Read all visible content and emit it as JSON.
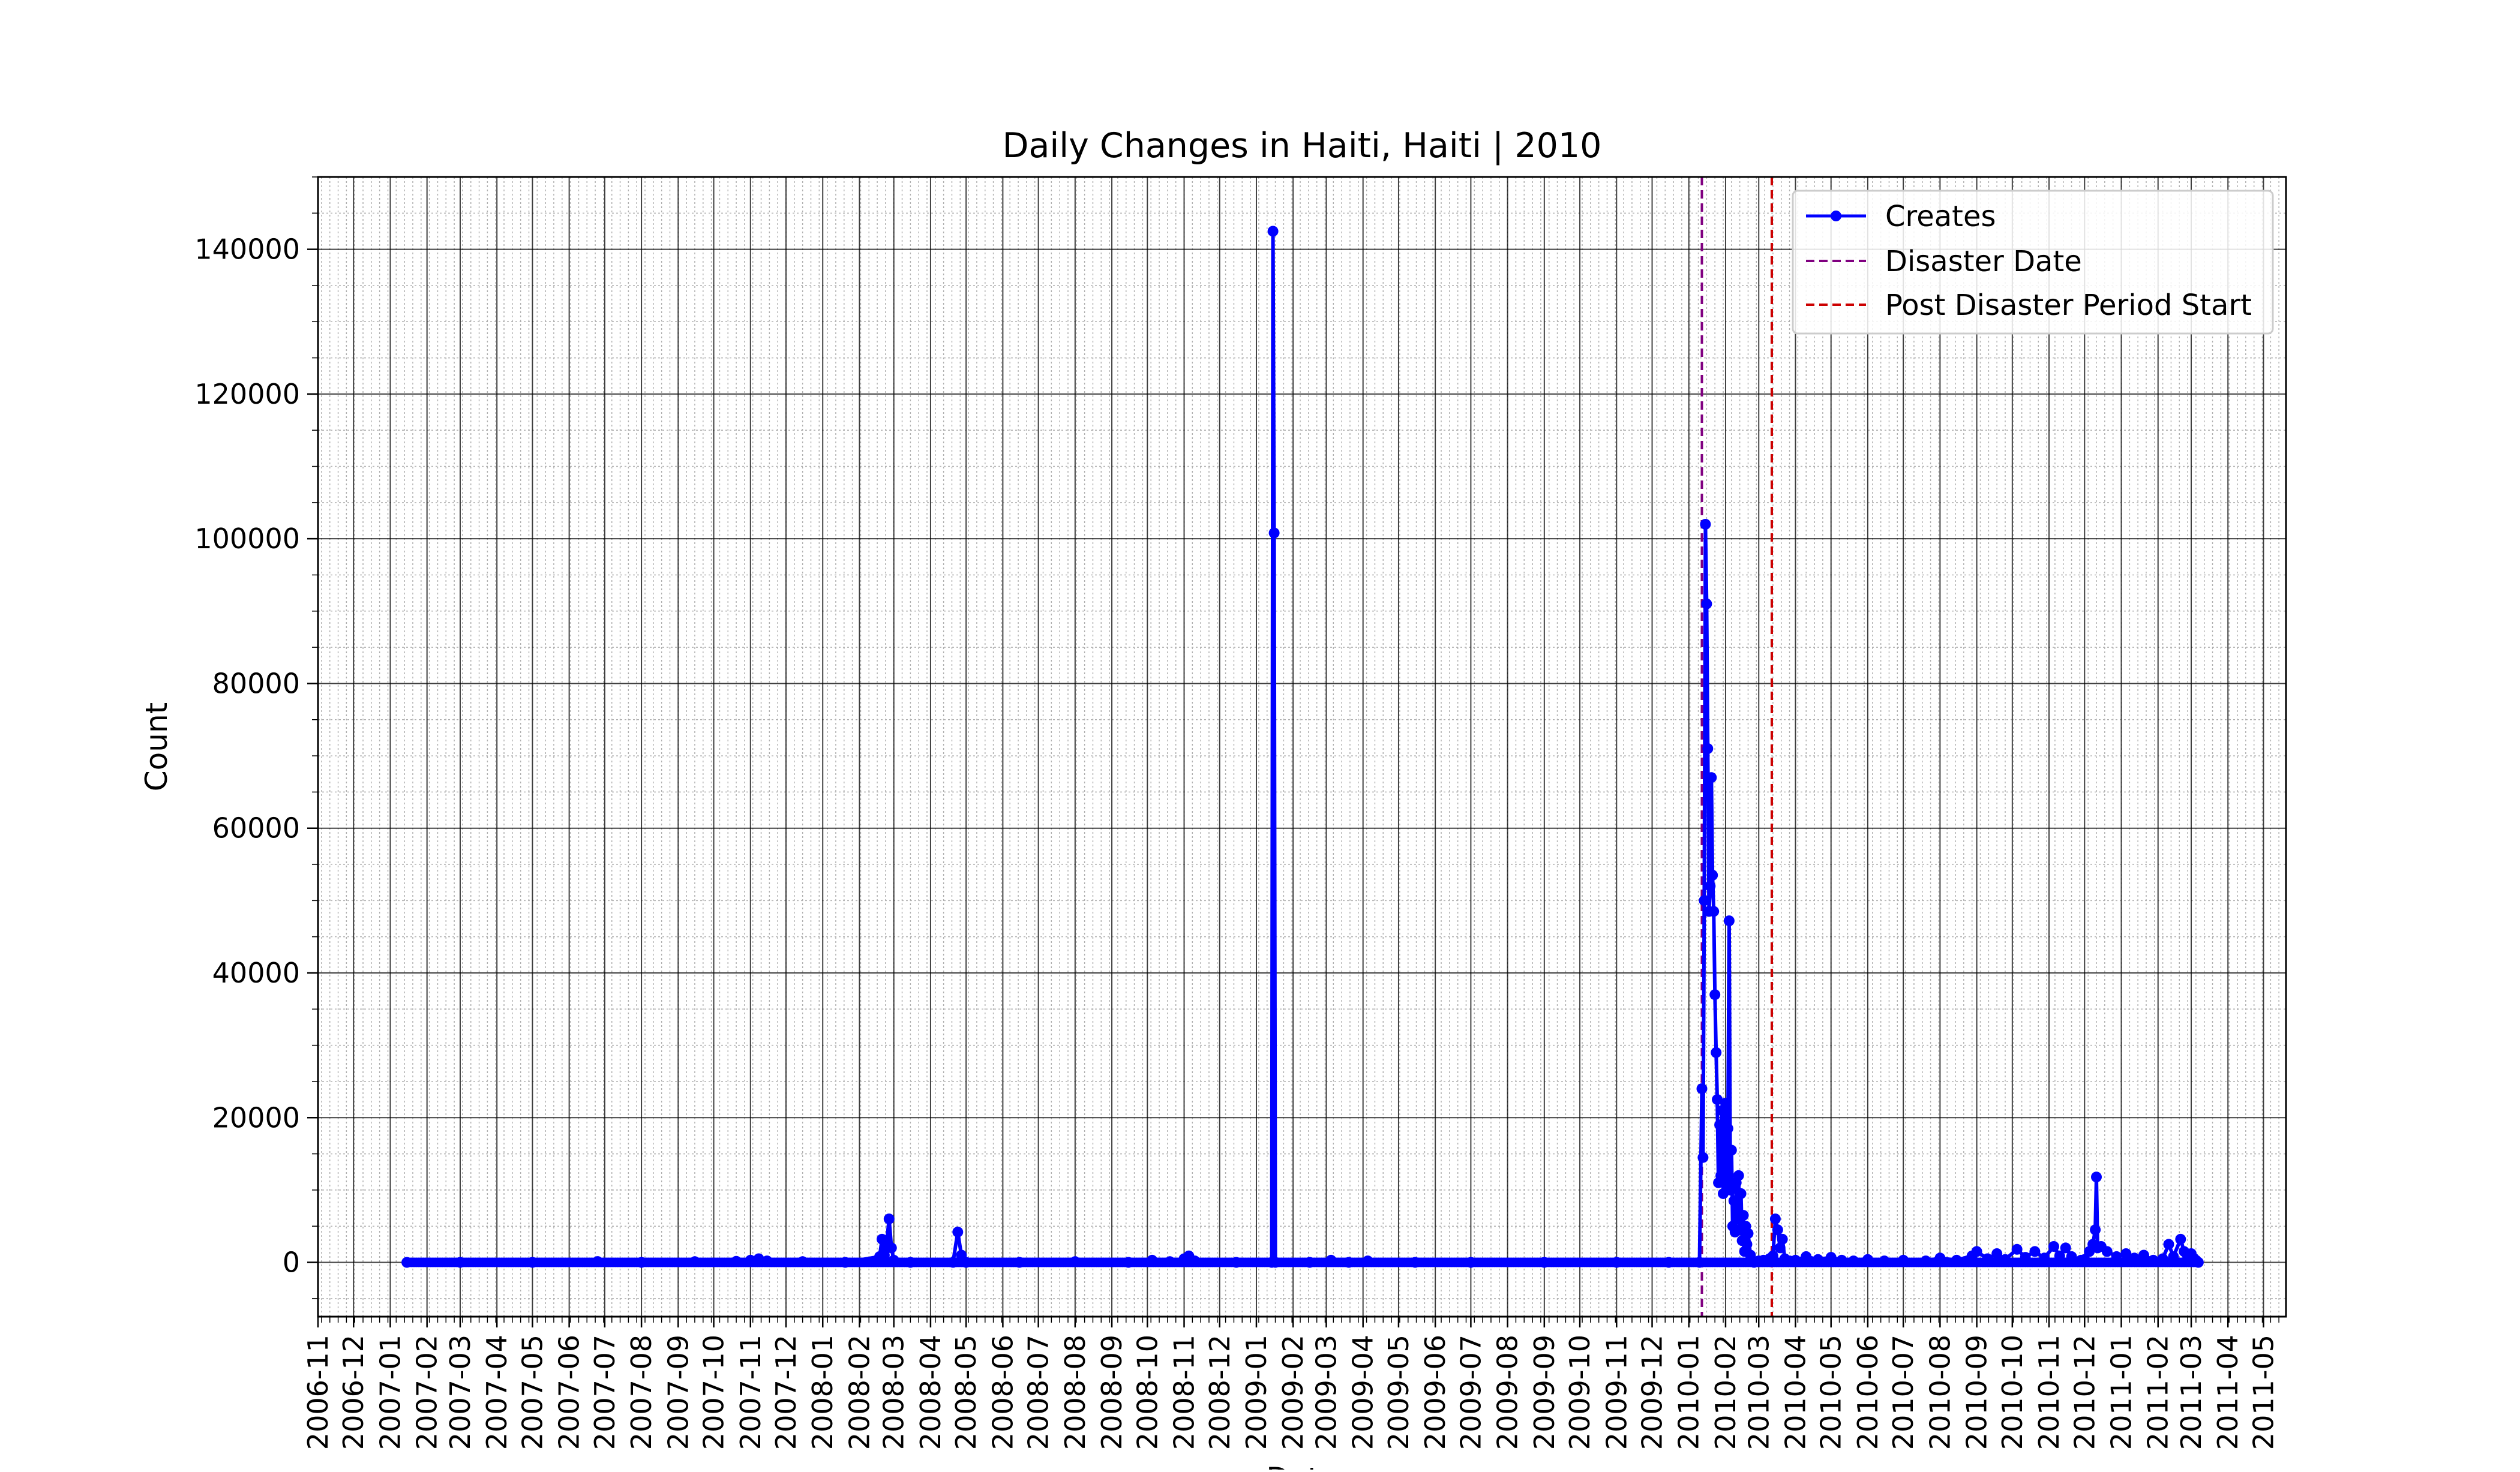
{
  "chart_data": {
    "type": "line",
    "title": "Daily Changes in Haiti, Haiti | 2010",
    "xlabel": "Date",
    "ylabel": "Count",
    "x_axis_type": "date",
    "xlim": [
      "2006-11-01",
      "2011-05-20"
    ],
    "ylim": [
      -7500,
      150000
    ],
    "grid": "major solid, minor dotted",
    "x_ticks": [
      "2006-11",
      "2006-12",
      "2007-01",
      "2007-02",
      "2007-03",
      "2007-04",
      "2007-05",
      "2007-06",
      "2007-07",
      "2007-08",
      "2007-09",
      "2007-10",
      "2007-11",
      "2007-12",
      "2008-01",
      "2008-02",
      "2008-03",
      "2008-04",
      "2008-05",
      "2008-06",
      "2008-07",
      "2008-08",
      "2008-09",
      "2008-10",
      "2008-11",
      "2008-12",
      "2009-01",
      "2009-02",
      "2009-03",
      "2009-04",
      "2009-05",
      "2009-06",
      "2009-07",
      "2009-08",
      "2009-09",
      "2009-10",
      "2009-11",
      "2009-12",
      "2010-01",
      "2010-02",
      "2010-03",
      "2010-04",
      "2010-05",
      "2010-06",
      "2010-07",
      "2010-08",
      "2010-09",
      "2010-10",
      "2010-11",
      "2010-12",
      "2011-01",
      "2011-02",
      "2011-03",
      "2011-04",
      "2011-05"
    ],
    "y_ticks": [
      0,
      20000,
      40000,
      60000,
      80000,
      100000,
      120000,
      140000
    ],
    "y_tick_labels": [
      "0",
      "20000",
      "40000",
      "60000",
      "80000",
      "100000",
      "120000",
      "140000"
    ],
    "legend_position": "top-right",
    "series": [
      {
        "name": "Creates",
        "color": "#0000ff",
        "marker": "circle",
        "points": [
          [
            "2007-01-15",
            0
          ],
          [
            "2007-03-01",
            0
          ],
          [
            "2007-05-01",
            0
          ],
          [
            "2007-06-25",
            120
          ],
          [
            "2007-08-01",
            0
          ],
          [
            "2007-09-15",
            100
          ],
          [
            "2007-10-20",
            150
          ],
          [
            "2007-11-01",
            300
          ],
          [
            "2007-11-08",
            500
          ],
          [
            "2007-11-15",
            200
          ],
          [
            "2007-12-15",
            100
          ],
          [
            "2008-01-20",
            0
          ],
          [
            "2008-02-18",
            800
          ],
          [
            "2008-02-20",
            3200
          ],
          [
            "2008-02-22",
            1000
          ],
          [
            "2008-02-24",
            2800
          ],
          [
            "2008-02-26",
            6000
          ],
          [
            "2008-02-28",
            2000
          ],
          [
            "2008-03-01",
            300
          ],
          [
            "2008-03-15",
            0
          ],
          [
            "2008-04-20",
            0
          ],
          [
            "2008-04-24",
            4200
          ],
          [
            "2008-04-27",
            1000
          ],
          [
            "2008-05-01",
            0
          ],
          [
            "2008-06-15",
            0
          ],
          [
            "2008-08-01",
            100
          ],
          [
            "2008-09-15",
            0
          ],
          [
            "2008-10-05",
            300
          ],
          [
            "2008-10-20",
            100
          ],
          [
            "2008-11-01",
            500
          ],
          [
            "2008-11-05",
            900
          ],
          [
            "2008-11-10",
            200
          ],
          [
            "2008-12-15",
            0
          ],
          [
            "2009-01-14",
            0
          ],
          [
            "2009-01-15",
            142500
          ],
          [
            "2009-01-16",
            100800
          ],
          [
            "2009-01-17",
            0
          ],
          [
            "2009-02-15",
            0
          ],
          [
            "2009-03-05",
            300
          ],
          [
            "2009-03-20",
            0
          ],
          [
            "2009-04-05",
            200
          ],
          [
            "2009-05-15",
            0
          ],
          [
            "2009-07-01",
            0
          ],
          [
            "2009-09-01",
            0
          ],
          [
            "2009-11-01",
            0
          ],
          [
            "2009-12-15",
            0
          ],
          [
            "2010-01-10",
            0
          ],
          [
            "2010-01-12",
            24000
          ],
          [
            "2010-01-13",
            14500
          ],
          [
            "2010-01-14",
            50000
          ],
          [
            "2010-01-15",
            102000
          ],
          [
            "2010-01-16",
            91000
          ],
          [
            "2010-01-17",
            71000
          ],
          [
            "2010-01-18",
            48500
          ],
          [
            "2010-01-19",
            52000
          ],
          [
            "2010-01-20",
            67000
          ],
          [
            "2010-01-21",
            53500
          ],
          [
            "2010-01-22",
            48500
          ],
          [
            "2010-01-23",
            37000
          ],
          [
            "2010-01-24",
            29000
          ],
          [
            "2010-01-25",
            22500
          ],
          [
            "2010-01-26",
            11000
          ],
          [
            "2010-01-27",
            19000
          ],
          [
            "2010-01-28",
            12000
          ],
          [
            "2010-01-29",
            21000
          ],
          [
            "2010-01-30",
            9500
          ],
          [
            "2010-01-31",
            15000
          ],
          [
            "2010-02-01",
            22000
          ],
          [
            "2010-02-02",
            11000
          ],
          [
            "2010-02-03",
            18500
          ],
          [
            "2010-02-04",
            47200
          ],
          [
            "2010-02-05",
            10000
          ],
          [
            "2010-02-06",
            15500
          ],
          [
            "2010-02-07",
            5000
          ],
          [
            "2010-02-08",
            8500
          ],
          [
            "2010-02-09",
            4200
          ],
          [
            "2010-02-10",
            11000
          ],
          [
            "2010-02-11",
            6000
          ],
          [
            "2010-02-12",
            12000
          ],
          [
            "2010-02-13",
            4500
          ],
          [
            "2010-02-14",
            9500
          ],
          [
            "2010-02-15",
            3000
          ],
          [
            "2010-02-16",
            6500
          ],
          [
            "2010-02-17",
            1500
          ],
          [
            "2010-02-18",
            5000
          ],
          [
            "2010-02-19",
            2500
          ],
          [
            "2010-02-20",
            4000
          ],
          [
            "2010-02-22",
            1000
          ],
          [
            "2010-02-25",
            0
          ],
          [
            "2010-03-01",
            200
          ],
          [
            "2010-03-05",
            300
          ],
          [
            "2010-03-10",
            500
          ],
          [
            "2010-03-13",
            900
          ],
          [
            "2010-03-15",
            6000
          ],
          [
            "2010-03-17",
            4500
          ],
          [
            "2010-03-19",
            2000
          ],
          [
            "2010-03-21",
            3200
          ],
          [
            "2010-03-23",
            500
          ],
          [
            "2010-03-27",
            200
          ],
          [
            "2010-04-01",
            300
          ],
          [
            "2010-04-10",
            800
          ],
          [
            "2010-04-20",
            400
          ],
          [
            "2010-05-01",
            700
          ],
          [
            "2010-05-10",
            300
          ],
          [
            "2010-05-20",
            200
          ],
          [
            "2010-06-01",
            400
          ],
          [
            "2010-06-15",
            200
          ],
          [
            "2010-07-01",
            300
          ],
          [
            "2010-07-20",
            200
          ],
          [
            "2010-08-01",
            600
          ],
          [
            "2010-08-15",
            300
          ],
          [
            "2010-08-28",
            900
          ],
          [
            "2010-09-01",
            1500
          ],
          [
            "2010-09-10",
            500
          ],
          [
            "2010-09-18",
            1200
          ],
          [
            "2010-09-25",
            400
          ],
          [
            "2010-10-05",
            1800
          ],
          [
            "2010-10-12",
            700
          ],
          [
            "2010-10-20",
            1500
          ],
          [
            "2010-10-28",
            600
          ],
          [
            "2010-11-05",
            2200
          ],
          [
            "2010-11-10",
            900
          ],
          [
            "2010-11-15",
            2000
          ],
          [
            "2010-11-20",
            800
          ],
          [
            "2010-11-28",
            300
          ],
          [
            "2010-12-01",
            400
          ],
          [
            "2010-12-05",
            1500
          ],
          [
            "2010-12-08",
            2500
          ],
          [
            "2010-12-10",
            4500
          ],
          [
            "2010-12-11",
            11800
          ],
          [
            "2010-12-12",
            2000
          ],
          [
            "2010-12-15",
            2200
          ],
          [
            "2010-12-20",
            1500
          ],
          [
            "2010-12-28",
            800
          ],
          [
            "2011-01-05",
            1200
          ],
          [
            "2011-01-12",
            600
          ],
          [
            "2011-01-20",
            1000
          ],
          [
            "2011-01-28",
            300
          ],
          [
            "2011-02-05",
            500
          ],
          [
            "2011-02-10",
            2500
          ],
          [
            "2011-02-14",
            800
          ],
          [
            "2011-02-20",
            3200
          ],
          [
            "2011-02-23",
            1500
          ],
          [
            "2011-02-26",
            800
          ],
          [
            "2011-03-01",
            1200
          ],
          [
            "2011-03-03",
            600
          ],
          [
            "2011-03-05",
            300
          ],
          [
            "2011-03-07",
            0
          ]
        ]
      }
    ],
    "reference_lines": [
      {
        "name": "Disaster Date",
        "x": "2010-01-12",
        "color": "#800080",
        "style": "dashed"
      },
      {
        "name": "Post Disaster Period Start",
        "x": "2010-03-12",
        "color": "#cc0000",
        "style": "dashed"
      }
    ]
  }
}
